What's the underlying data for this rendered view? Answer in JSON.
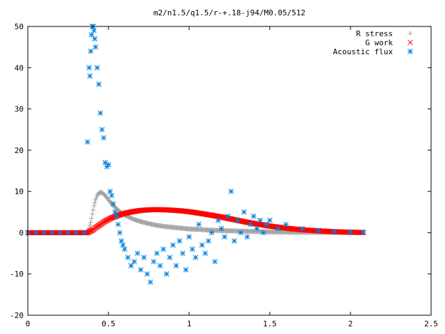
{
  "chart_data": {
    "type": "scatter",
    "title": "m2/n1.5/q1.5/r-+.18-j94/M0.05/512",
    "xlabel": "",
    "ylabel": "",
    "xlim": [
      0,
      2.5
    ],
    "ylim": [
      -20,
      50
    ],
    "xticks": [
      0,
      0.5,
      1,
      1.5,
      2,
      2.5
    ],
    "xtick_labels": [
      "0",
      "0.5",
      "1",
      "1.5",
      "2",
      "2.5"
    ],
    "yticks": [
      -20,
      -10,
      0,
      10,
      20,
      30,
      40,
      50
    ],
    "ytick_labels": [
      "-20",
      "-10",
      "0",
      "10",
      "20",
      "30",
      "40",
      "50"
    ],
    "grid": false,
    "legend_position": "top-right",
    "series": [
      {
        "name": "R stress",
        "marker": "plus",
        "color": "#a0a0a0",
        "x": [
          0.0,
          0.1,
          0.2,
          0.3,
          0.37,
          0.38,
          0.39,
          0.4,
          0.41,
          0.42,
          0.43,
          0.44,
          0.45,
          0.46,
          0.47,
          0.48,
          0.5,
          0.52,
          0.55,
          0.58,
          0.62,
          0.66,
          0.7,
          0.75,
          0.8,
          0.85,
          0.9,
          0.95,
          1.0,
          1.05,
          1.1,
          1.15,
          1.2,
          1.3,
          1.4,
          1.5,
          1.6,
          1.7,
          1.8,
          1.9,
          2.0,
          2.08
        ],
        "y": [
          0,
          0,
          0,
          0,
          0,
          1,
          2.5,
          4.5,
          6.5,
          8,
          9,
          9.6,
          9.8,
          9.7,
          9.4,
          9.0,
          8.0,
          7.0,
          5.8,
          4.8,
          3.9,
          3.2,
          2.7,
          2.2,
          1.8,
          1.5,
          1.3,
          1.1,
          0.9,
          0.8,
          0.7,
          0.6,
          0.5,
          0.4,
          0.3,
          0.2,
          0.15,
          0.1,
          0.08,
          0.05,
          0.03,
          0.02
        ]
      },
      {
        "name": "G work",
        "marker": "cross",
        "color": "#ff0000",
        "x": [
          0.0,
          0.1,
          0.2,
          0.3,
          0.37,
          0.38,
          0.4,
          0.42,
          0.45,
          0.48,
          0.52,
          0.56,
          0.6,
          0.65,
          0.7,
          0.75,
          0.8,
          0.85,
          0.9,
          0.95,
          1.0,
          1.05,
          1.1,
          1.15,
          1.2,
          1.25,
          1.3,
          1.35,
          1.4,
          1.5,
          1.6,
          1.7,
          1.8,
          1.9,
          2.0,
          2.08
        ],
        "y": [
          0,
          0,
          0,
          0,
          0,
          0.2,
          0.6,
          1.2,
          2.0,
          2.8,
          3.6,
          4.2,
          4.7,
          5.1,
          5.4,
          5.55,
          5.6,
          5.55,
          5.45,
          5.3,
          5.1,
          4.8,
          4.5,
          4.15,
          3.8,
          3.4,
          3.0,
          2.6,
          2.25,
          1.6,
          1.1,
          0.7,
          0.45,
          0.25,
          0.12,
          0.05
        ]
      },
      {
        "name": "Acoustic flux",
        "marker": "star",
        "color": "#0080e0",
        "x": [
          0.0,
          0.05,
          0.1,
          0.15,
          0.2,
          0.25,
          0.3,
          0.35,
          0.37,
          0.38,
          0.385,
          0.39,
          0.395,
          0.4,
          0.405,
          0.41,
          0.415,
          0.42,
          0.43,
          0.44,
          0.45,
          0.46,
          0.47,
          0.48,
          0.49,
          0.5,
          0.51,
          0.52,
          0.53,
          0.54,
          0.55,
          0.56,
          0.57,
          0.58,
          0.59,
          0.6,
          0.62,
          0.64,
          0.66,
          0.68,
          0.7,
          0.72,
          0.74,
          0.76,
          0.78,
          0.8,
          0.82,
          0.84,
          0.86,
          0.88,
          0.9,
          0.92,
          0.94,
          0.96,
          0.98,
          1.0,
          1.02,
          1.04,
          1.06,
          1.08,
          1.1,
          1.12,
          1.14,
          1.16,
          1.18,
          1.2,
          1.22,
          1.24,
          1.26,
          1.28,
          1.3,
          1.32,
          1.34,
          1.36,
          1.38,
          1.4,
          1.42,
          1.44,
          1.46,
          1.48,
          1.5,
          1.55,
          1.6,
          1.7,
          1.8,
          1.9,
          2.0,
          2.08
        ],
        "y": [
          0,
          0,
          0,
          0,
          0,
          0,
          0,
          0,
          22,
          40,
          38,
          44,
          48,
          50,
          50,
          49,
          47,
          45,
          40,
          36,
          29,
          25,
          23,
          17,
          16,
          16.5,
          10,
          9,
          7,
          5,
          4,
          2,
          0,
          -2,
          -3,
          -4,
          -6,
          -8,
          -7,
          -5,
          -9,
          -6,
          -10,
          -12,
          -7,
          -5,
          -8,
          -4,
          -10,
          -6,
          -3,
          -8,
          -2,
          -5,
          -9,
          -1,
          -4,
          -6,
          2,
          -3,
          -5,
          -2,
          0,
          -7,
          3,
          1,
          -1,
          4,
          10,
          -2,
          3,
          0,
          5,
          -1,
          2,
          4,
          1,
          3,
          0,
          2,
          3,
          1,
          2,
          1,
          0.6,
          0.3,
          0.2,
          0.1
        ]
      }
    ]
  }
}
